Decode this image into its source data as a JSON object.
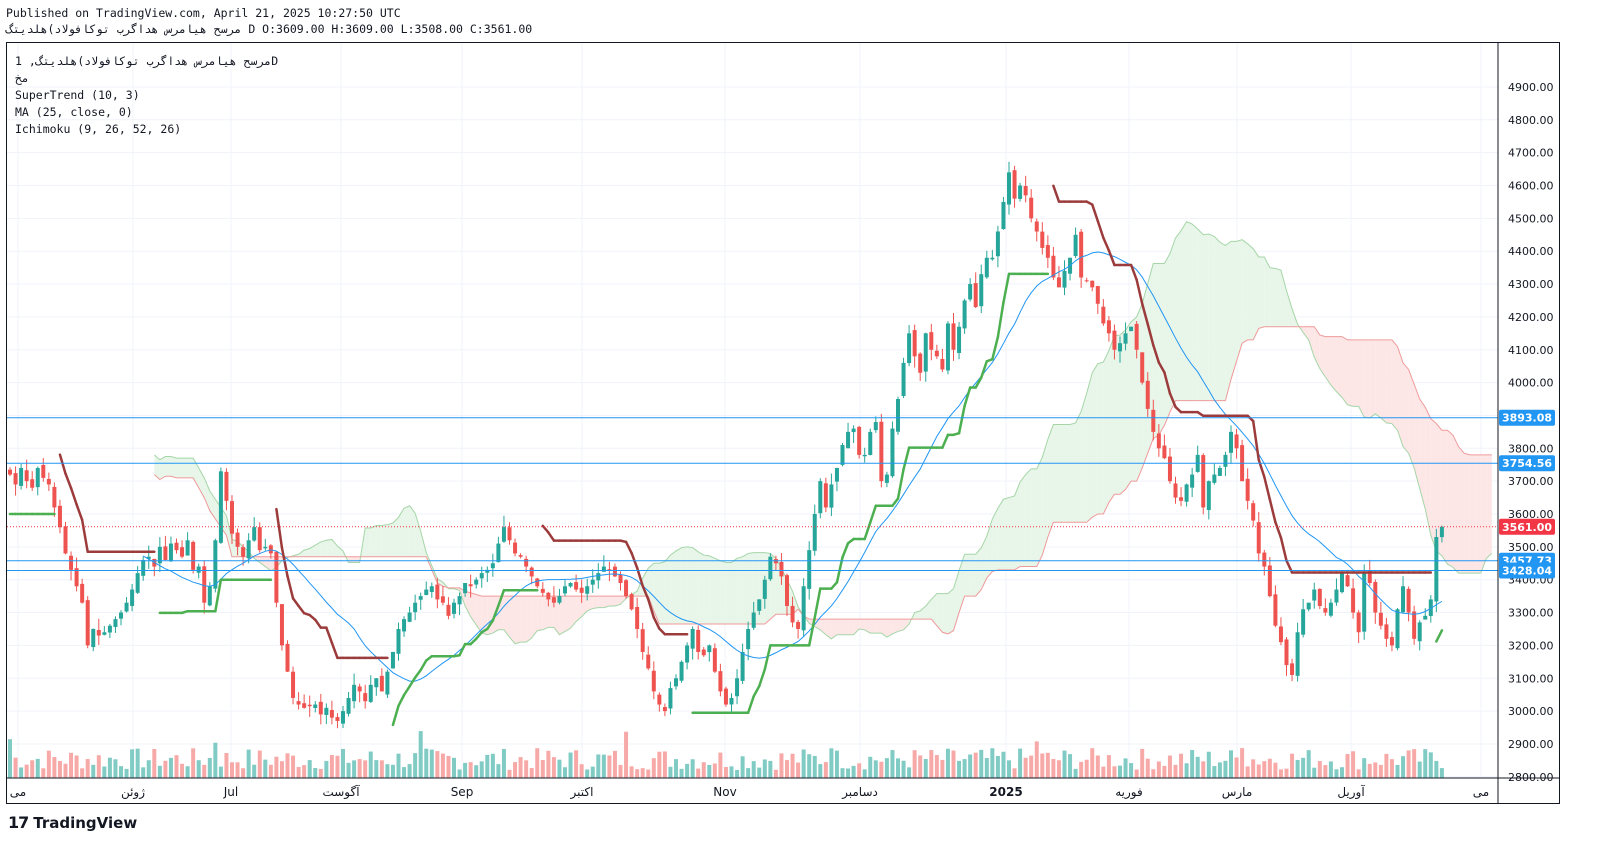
{
  "header": {
    "published": "Published on TradingView.com, April 21, 2025 10:27:50 UTC",
    "ohlc_line": "مرسح هیامرس هداگرب توکافولاد)هلدیتگ D O:3609.00 H:3609.00 L:3508.00 C:3561.00"
  },
  "legend": {
    "symbol": "مرسح هیامرس هداگرب توکافولاد)هلدیتگ, 1D",
    "exchange": "مخ",
    "supertrend": "SuperTrend (10, 3)",
    "ma": "MA (25, close, 0)",
    "ichimoku": "Ichimoku (9, 26, 52, 26)"
  },
  "brand": {
    "logo_text": "TradingView",
    "logo_mark": "17"
  },
  "colors": {
    "up": "#26a69a",
    "down": "#ef5350",
    "supertrend_up": "#4caf50",
    "supertrend_down": "#9c3b3b",
    "ma": "#2196f3",
    "hline": "#2196f3",
    "cloud_green": "#e8f5e9",
    "cloud_red": "#fde6e6",
    "last_price": "#f23645"
  },
  "chart_data": {
    "type": "candlestick",
    "y_axis": {
      "min": 2750,
      "max": 4950,
      "ticks": [
        "4900.00",
        "4800.00",
        "4700.00",
        "4600.00",
        "4500.00",
        "4400.00",
        "4300.00",
        "4200.00",
        "4100.00",
        "4000.00",
        "3900.00",
        "3800.00",
        "3700.00",
        "3600.00",
        "3500.00",
        "3400.00",
        "3300.00",
        "3200.00",
        "3100.00",
        "3000.00",
        "2900.00",
        "2800.00"
      ]
    },
    "x_axis": {
      "ticks": [
        "می",
        "ژوئن",
        "Jul",
        "آگوست",
        "Sep",
        "اکتبر",
        "Nov",
        "دسامبر",
        "2025",
        "فوریه",
        "مارس",
        "آوریل",
        "می"
      ]
    },
    "horizontal_lines": [
      3893.08,
      3754.56,
      3457.73,
      3428.04
    ],
    "price_labels": [
      {
        "text": "3893.08",
        "value": 3893.08,
        "kind": "hline"
      },
      {
        "text": "3754.56",
        "value": 3754.56,
        "kind": "hline"
      },
      {
        "text": "3561.00",
        "value": 3561.0,
        "kind": "last"
      },
      {
        "text": "3457.73",
        "value": 3457.73,
        "kind": "hline"
      },
      {
        "text": "3428.04",
        "value": 3428.04,
        "kind": "hline"
      }
    ],
    "last_price": 3561.0,
    "closes": [
      3720,
      3690,
      3740,
      3700,
      3680,
      3740,
      3710,
      3690,
      3620,
      3560,
      3480,
      3430,
      3380,
      3330,
      3200,
      3250,
      3230,
      3240,
      3260,
      3280,
      3300,
      3330,
      3370,
      3420,
      3460,
      3470,
      3440,
      3500,
      3460,
      3510,
      3490,
      3470,
      3520,
      3430,
      3440,
      3330,
      3380,
      3520,
      3730,
      3640,
      3540,
      3500,
      3470,
      3520,
      3560,
      3490,
      3500,
      3480,
      3330,
      3200,
      3120,
      3040,
      3020,
      3010,
      3015,
      3020,
      2990,
      3010,
      2980,
      2970,
      3000,
      3040,
      3080,
      3060,
      3030,
      3080,
      3100,
      3060,
      3120,
      3180,
      3250,
      3280,
      3300,
      3330,
      3350,
      3370,
      3380,
      3340,
      3330,
      3290,
      3330,
      3350,
      3390,
      3380,
      3400,
      3420,
      3430,
      3450,
      3510,
      3560,
      3520,
      3480,
      3470,
      3440,
      3410,
      3380,
      3360,
      3340,
      3330,
      3350,
      3380,
      3390,
      3370,
      3360,
      3380,
      3400,
      3420,
      3440,
      3430,
      3410,
      3390,
      3350,
      3310,
      3250,
      3180,
      3130,
      3060,
      3020,
      3000,
      3070,
      3100,
      3150,
      3200,
      3250,
      3180,
      3170,
      3200,
      3120,
      3060,
      3020,
      3040,
      3100,
      3180,
      3250,
      3300,
      3340,
      3400,
      3470,
      3450,
      3410,
      3320,
      3270,
      3250,
      3380,
      3490,
      3600,
      3700,
      3620,
      3690,
      3740,
      3810,
      3850,
      3860,
      3780,
      3780,
      3850,
      3880,
      3700,
      3720,
      3860,
      3950,
      4060,
      4150,
      4080,
      4030,
      4150,
      4100,
      4080,
      4040,
      4180,
      4100,
      4170,
      4250,
      4300,
      4230,
      4330,
      4380,
      4380,
      4460,
      4550,
      4640,
      4560,
      4600,
      4570,
      4500,
      4460,
      4410,
      4380,
      4320,
      4290,
      4340,
      4380,
      4450,
      4320,
      4310,
      4290,
      4240,
      4180,
      4150,
      4100,
      4120,
      4150,
      4170,
      4100,
      4000,
      3920,
      3850,
      3800,
      3770,
      3700,
      3650,
      3640,
      3690,
      3720,
      3780,
      3620,
      3700,
      3720,
      3740,
      3780,
      3850,
      3800,
      3700,
      3640,
      3580,
      3480,
      3440,
      3350,
      3260,
      3210,
      3140,
      3110,
      3240,
      3310,
      3330,
      3370,
      3320,
      3300,
      3330,
      3370,
      3420,
      3380,
      3300,
      3240,
      3420,
      3390,
      3300,
      3260,
      3220,
      3200,
      3310,
      3380,
      3300,
      3220,
      3270,
      3290,
      3340,
      3530,
      3561
    ],
    "series": [
      {
        "name": "SuperTrend (10, 3)",
        "values": []
      },
      {
        "name": "MA (25, close, 0)",
        "values": []
      },
      {
        "name": "Ichimoku (9, 26, 52, 26)",
        "values": []
      }
    ]
  }
}
